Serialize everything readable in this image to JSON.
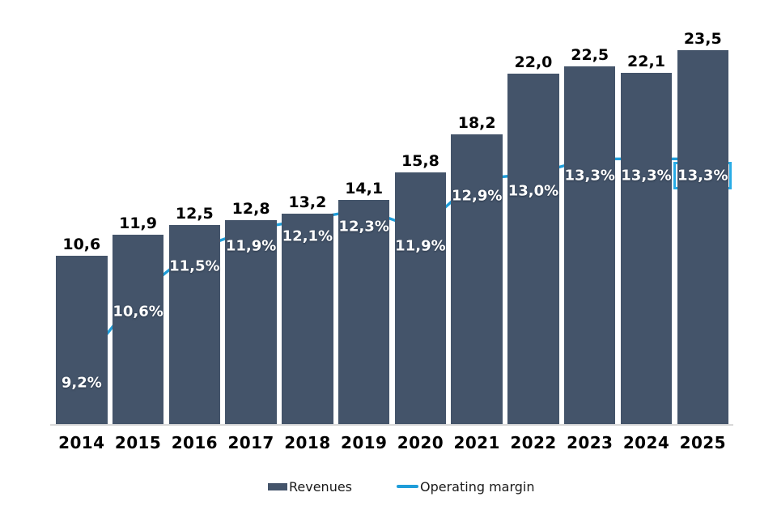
{
  "chart_data": {
    "type": "combo",
    "title": "",
    "categories": [
      "2014",
      "2015",
      "2016",
      "2017",
      "2018",
      "2019",
      "2020",
      "2021",
      "2022",
      "2023",
      "2024",
      "2025"
    ],
    "series": [
      {
        "name": "Revenues",
        "type": "bar",
        "color": "#44546A",
        "values": [
          10.6,
          11.9,
          12.5,
          12.8,
          13.2,
          14.1,
          15.8,
          18.2,
          22.0,
          22.5,
          22.1,
          23.5
        ],
        "labels": [
          "10,6",
          "11,9",
          "12,5",
          "12,8",
          "13,2",
          "14,1",
          "15,8",
          "18,2",
          "22,0",
          "22,5",
          "22,1",
          "23,5"
        ]
      },
      {
        "name": "Operating margin",
        "type": "line",
        "color": "#1f9dd9",
        "values": [
          9.2,
          10.6,
          11.5,
          11.9,
          12.1,
          12.3,
          11.9,
          12.9,
          13.0,
          13.3,
          13.3,
          13.3
        ],
        "labels": [
          "9,2%",
          "10,6%",
          "11,5%",
          "11,9%",
          "12,1%",
          "12,3%",
          "11,9%",
          "12,9%",
          "13,0%",
          "13,3%",
          "13,3%",
          "13,3%"
        ]
      }
    ],
    "highlight": {
      "category": "2025",
      "series": "Operating margin",
      "label": "13,3%",
      "box_color": "#29ace6"
    },
    "value_label_style": "decimal-comma",
    "bar_axis_range": [
      0,
      25
    ],
    "line_axis_range": [
      8,
      14.5
    ],
    "grid": false,
    "axes_hidden": true,
    "legend_position": "bottom"
  }
}
